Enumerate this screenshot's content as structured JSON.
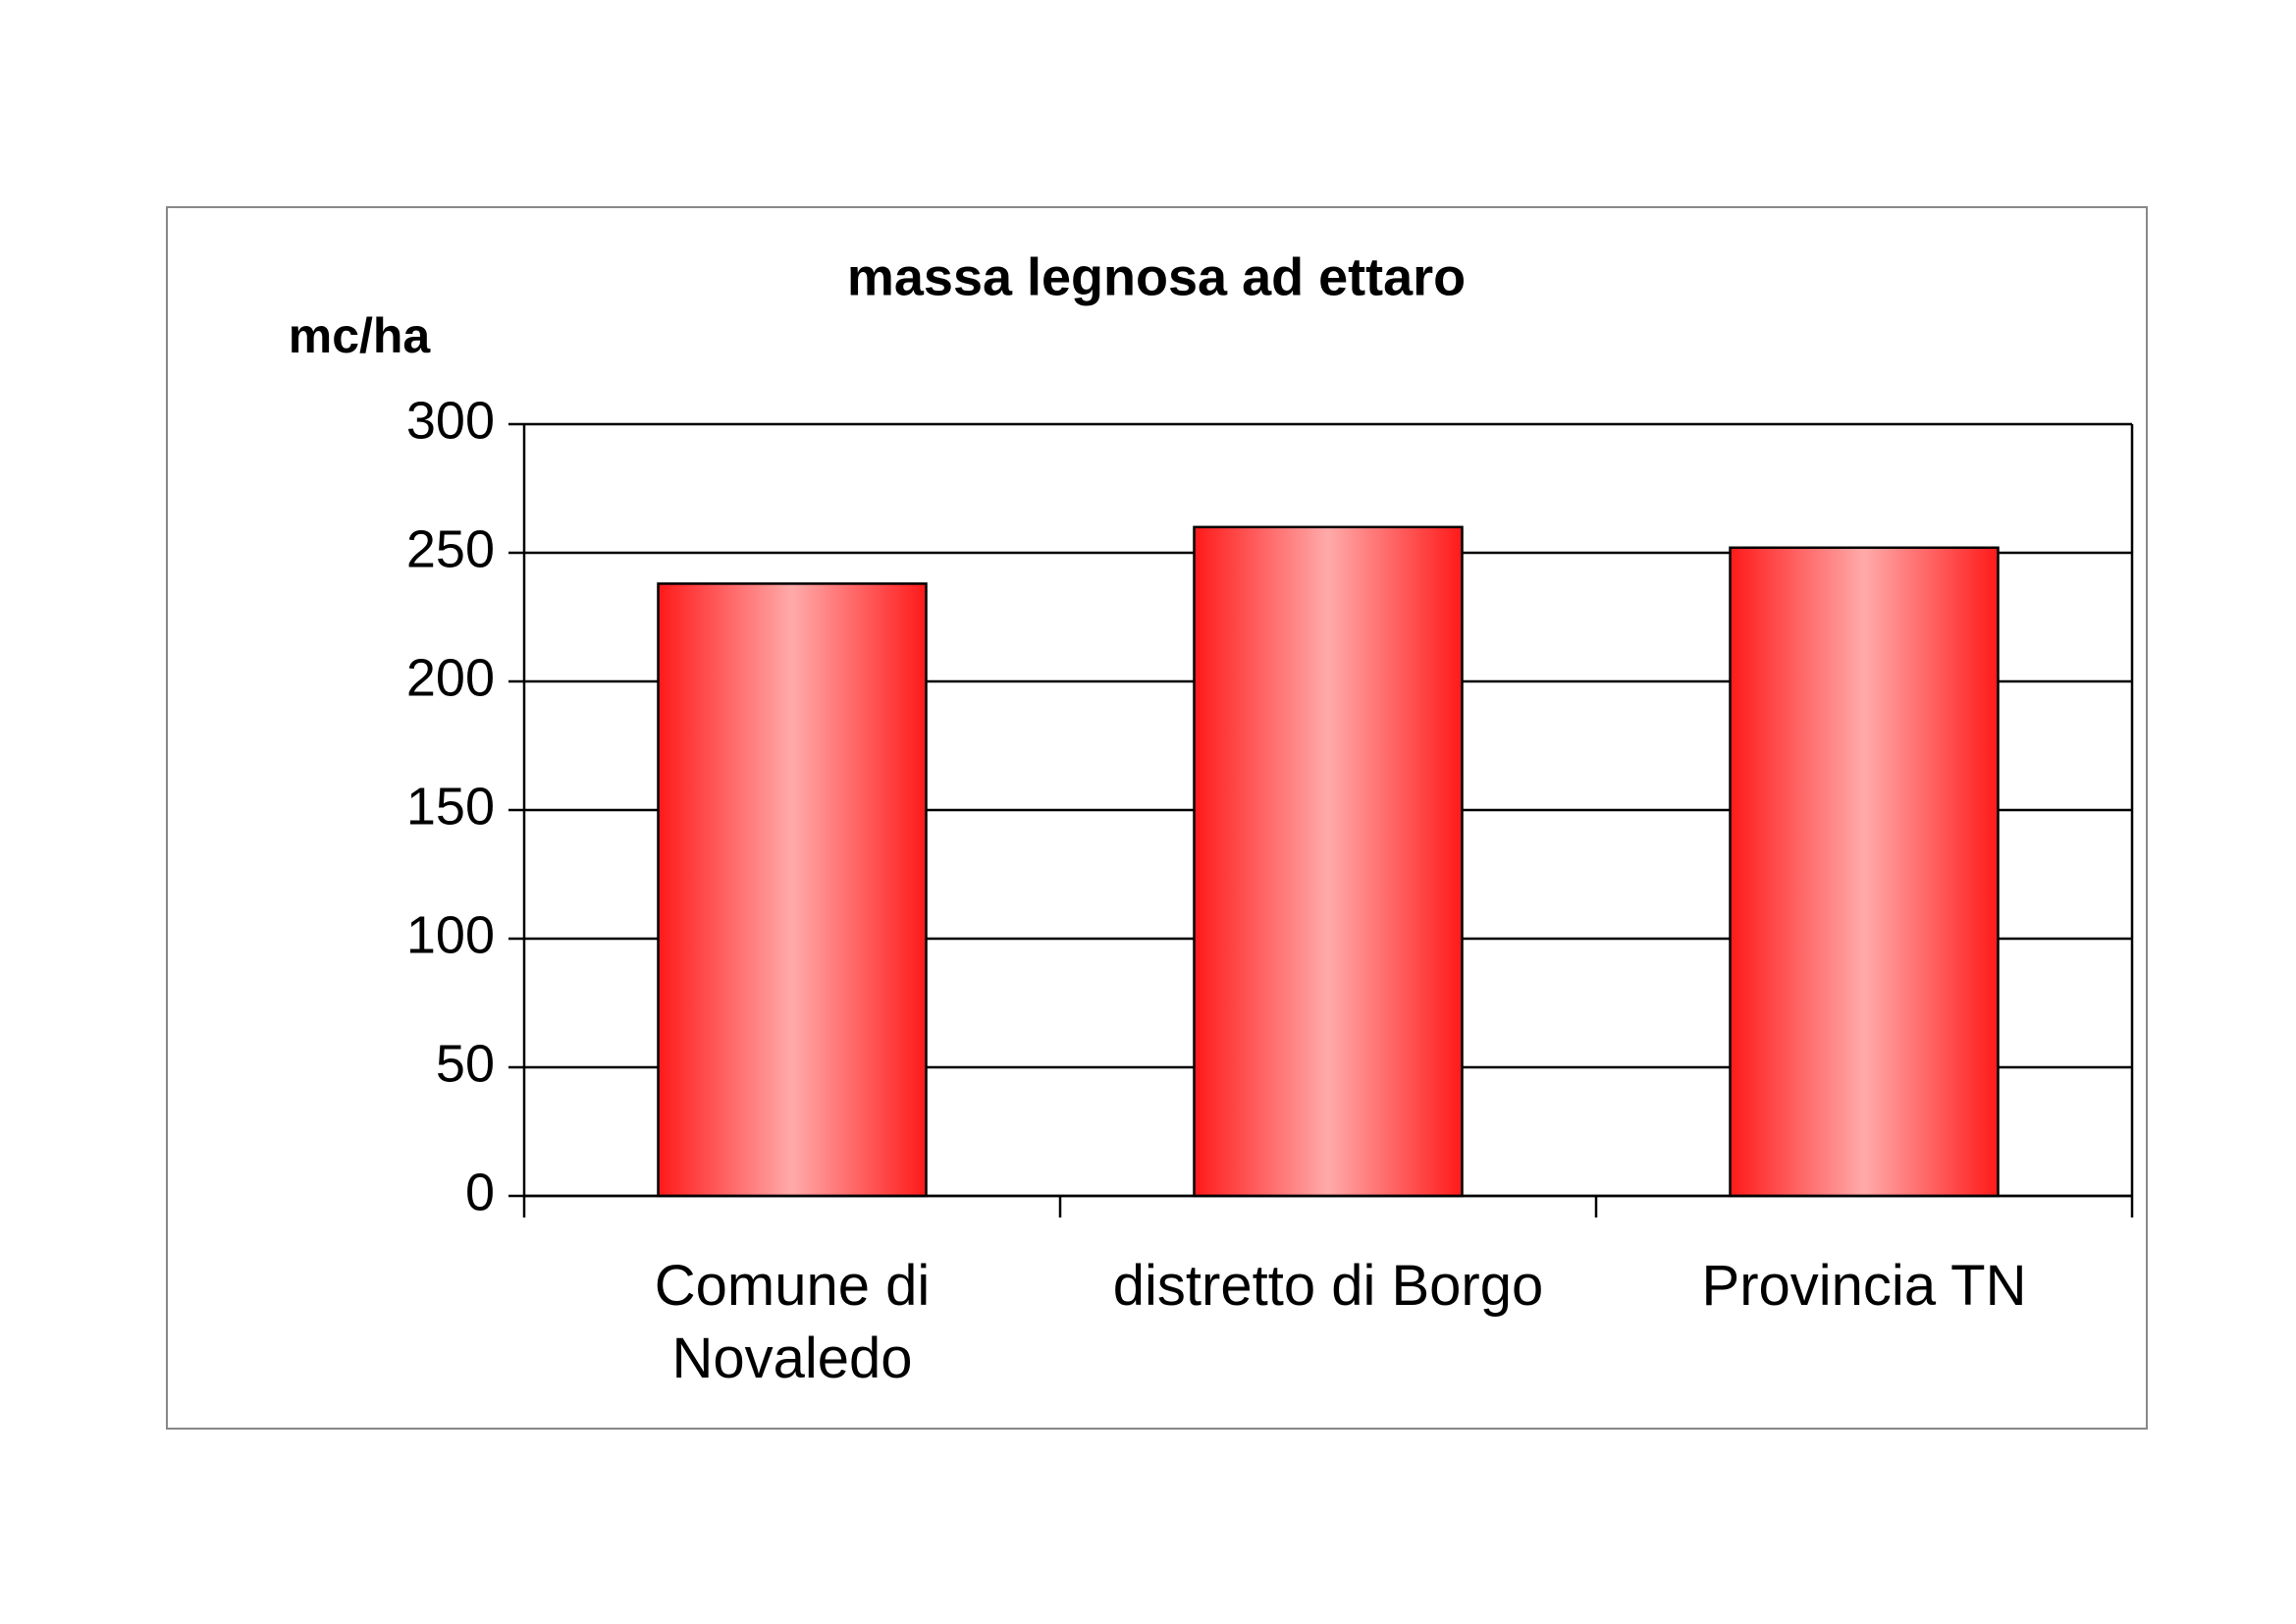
{
  "chart_data": {
    "type": "bar",
    "title": "massa legnosa ad ettaro",
    "y_label": "mc/ha",
    "categories": [
      "Comune di Novaledo",
      "distretto di Borgo",
      "Provincia TN"
    ],
    "values": [
      238,
      260,
      252
    ],
    "color": "#ff0000",
    "ylim": [
      0,
      300
    ],
    "yticks": [
      0,
      50,
      100,
      150,
      200,
      250,
      300
    ],
    "grid": true
  }
}
